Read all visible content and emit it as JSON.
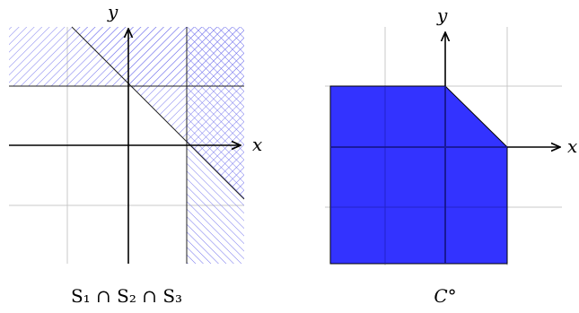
{
  "left_panel": {
    "x_label": "x",
    "y_label": "y",
    "caption": "S₁ ∩ S₂ ∩ S₃"
  },
  "right_panel": {
    "x_label": "x",
    "y_label": "y",
    "caption": "C°"
  },
  "colors": {
    "grid": "#c8c8c8",
    "axis": "#000000",
    "hatch": "#6f6fe8",
    "polar_fill": "#3333ff"
  }
}
